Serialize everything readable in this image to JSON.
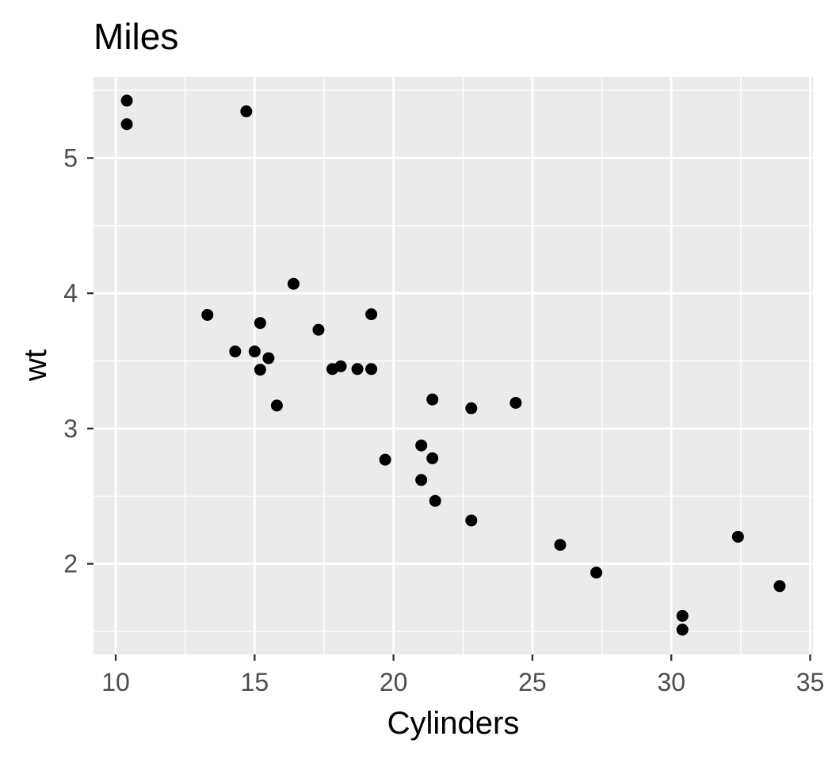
{
  "chart_data": {
    "type": "scatter",
    "title": "Miles",
    "xlabel": "Cylinders",
    "ylabel": "wt",
    "xlim": [
      9.2,
      35.1
    ],
    "ylim": [
      1.33,
      5.6
    ],
    "x_ticks": [
      10,
      15,
      20,
      25,
      30,
      35
    ],
    "y_ticks": [
      2,
      3,
      4,
      5
    ],
    "x_minor_ticks": [
      12.5,
      17.5,
      22.5,
      27.5,
      32.5
    ],
    "y_minor_ticks": [
      1.5,
      2.5,
      3.5,
      4.5,
      5.5
    ],
    "grid": true,
    "colors": {
      "panel_background": "#ebebeb",
      "grid": "#ffffff",
      "point": "#000000",
      "tick": "#333333"
    },
    "points": [
      {
        "x": 10.4,
        "y": 5.424
      },
      {
        "x": 10.4,
        "y": 5.25
      },
      {
        "x": 14.7,
        "y": 5.345
      },
      {
        "x": 16.4,
        "y": 4.07
      },
      {
        "x": 13.3,
        "y": 3.84
      },
      {
        "x": 19.2,
        "y": 3.845
      },
      {
        "x": 15.2,
        "y": 3.78
      },
      {
        "x": 17.3,
        "y": 3.73
      },
      {
        "x": 14.3,
        "y": 3.57
      },
      {
        "x": 15.0,
        "y": 3.57
      },
      {
        "x": 15.5,
        "y": 3.52
      },
      {
        "x": 17.8,
        "y": 3.44
      },
      {
        "x": 18.1,
        "y": 3.46
      },
      {
        "x": 18.7,
        "y": 3.44
      },
      {
        "x": 19.2,
        "y": 3.44
      },
      {
        "x": 15.2,
        "y": 3.435
      },
      {
        "x": 15.8,
        "y": 3.17
      },
      {
        "x": 21.4,
        "y": 3.215
      },
      {
        "x": 22.8,
        "y": 3.15
      },
      {
        "x": 24.4,
        "y": 3.19
      },
      {
        "x": 19.7,
        "y": 2.77
      },
      {
        "x": 21.0,
        "y": 2.875
      },
      {
        "x": 21.4,
        "y": 2.78
      },
      {
        "x": 21.0,
        "y": 2.62
      },
      {
        "x": 21.5,
        "y": 2.465
      },
      {
        "x": 22.8,
        "y": 2.32
      },
      {
        "x": 26.0,
        "y": 2.14
      },
      {
        "x": 32.4,
        "y": 2.2
      },
      {
        "x": 27.3,
        "y": 1.935
      },
      {
        "x": 33.9,
        "y": 1.835
      },
      {
        "x": 30.4,
        "y": 1.615
      },
      {
        "x": 30.4,
        "y": 1.513
      }
    ]
  }
}
